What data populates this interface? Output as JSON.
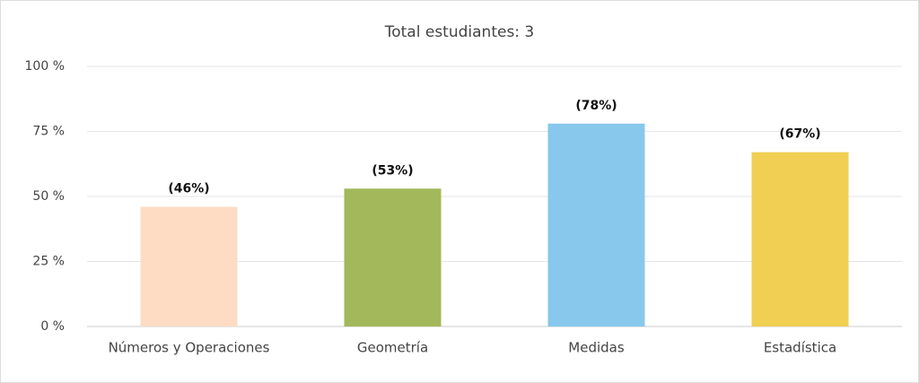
{
  "chart_data": {
    "type": "bar",
    "title": "Total estudiantes: 3",
    "categories": [
      "Números y Operaciones",
      "Geometría",
      "Medidas",
      "Estadística"
    ],
    "values": [
      46,
      53,
      78,
      67
    ],
    "value_labels": [
      "(46%)",
      "(53%)",
      "(78%)",
      "(67%)"
    ],
    "colors": [
      "#fddcc3",
      "#a3b85a",
      "#87c8ec",
      "#f0cf52"
    ],
    "ylim": [
      0,
      100
    ],
    "yticks": [
      {
        "value": 0,
        "label": "0 %"
      },
      {
        "value": 25,
        "label": "25 %"
      },
      {
        "value": 50,
        "label": "50 %"
      },
      {
        "value": 75,
        "label": "75 %"
      },
      {
        "value": 100,
        "label": "100 %"
      }
    ],
    "grid": true
  }
}
